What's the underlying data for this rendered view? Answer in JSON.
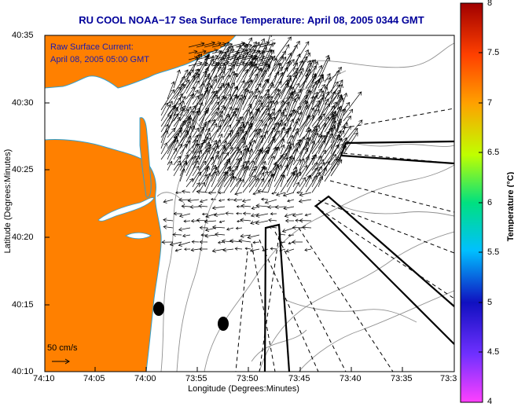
{
  "title": "RU COOL  NOAA−17  Sea Surface Temperature:  April 08, 2005 0344 GMT",
  "overlay": {
    "current_label": "Raw Surface Current:",
    "current_time": "April 08, 2005 05:00 GMT"
  },
  "axes": {
    "xlabel": "Longitude (Degrees:Minutes)",
    "ylabel": "Latitude (Degrees:Minutes)",
    "x_ticks": [
      "74:10",
      "74:05",
      "74:00",
      "73:55",
      "73:50",
      "73:45",
      "73:40",
      "73:35",
      "73:3"
    ],
    "y_ticks": [
      "40:35",
      "40:30",
      "40:25",
      "40:20",
      "40:15",
      "40:10"
    ]
  },
  "colorbar": {
    "title": "Temperature (°C)",
    "ticks": [
      "8",
      "7.5",
      "7",
      "6.5",
      "6",
      "5.5",
      "5",
      "4.5",
      "4"
    ],
    "range": [
      4,
      8
    ]
  },
  "scale": {
    "label": "50 cm/s"
  },
  "colors": {
    "land": "#ff8000",
    "title": "#00009a",
    "overlay_text": "#1a1ab0",
    "contour": "#808080"
  }
}
